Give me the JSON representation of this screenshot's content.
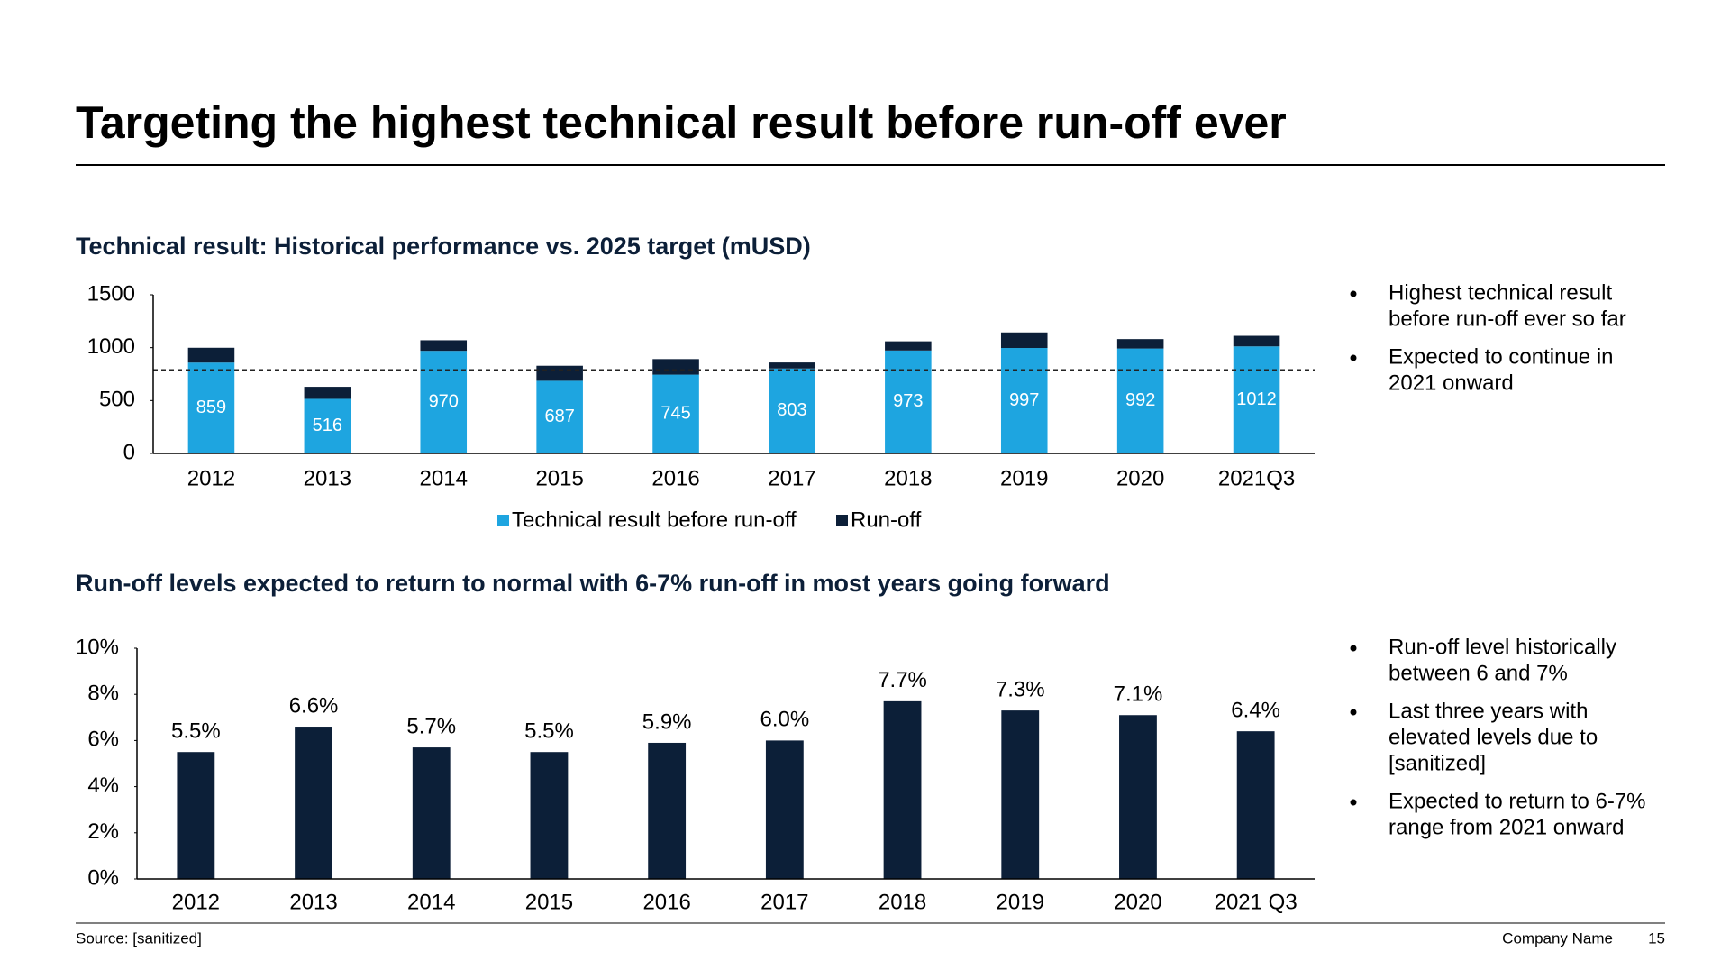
{
  "title": "Targeting the highest technical result before run-off ever",
  "chart_data": [
    {
      "type": "stacked-bar",
      "title": "Technical result: Historical performance vs. 2025 target (mUSD)",
      "categories": [
        "2012",
        "2013",
        "2014",
        "2015",
        "2016",
        "2017",
        "2018",
        "2019",
        "2020",
        "2021Q3"
      ],
      "series": [
        {
          "name": "Technical result before run-off",
          "color": "#1ea5e0",
          "values": [
            859,
            516,
            970,
            687,
            745,
            803,
            973,
            997,
            992,
            1012
          ]
        },
        {
          "name": "Run-off",
          "color": "#0c1f38",
          "values": [
            140,
            114,
            100,
            142,
            147,
            57,
            87,
            147,
            89,
            100
          ]
        }
      ],
      "target_line": 790,
      "ylim": [
        0,
        1500
      ],
      "yticks": [
        0,
        500,
        1000,
        1500
      ],
      "legend": "bottom"
    },
    {
      "type": "bar",
      "title": "Run-off levels expected to return to normal with 6-7% run-off in most years going forward",
      "categories": [
        "2012",
        "2013",
        "2014",
        "2015",
        "2016",
        "2017",
        "2018",
        "2019",
        "2020",
        "2021 Q3"
      ],
      "values": [
        5.5,
        6.6,
        5.7,
        5.5,
        5.9,
        6.0,
        7.7,
        7.3,
        7.1,
        6.4
      ],
      "value_labels": [
        "5.5%",
        "6.6%",
        "5.7%",
        "5.5%",
        "5.9%",
        "6.0%",
        "7.7%",
        "7.3%",
        "7.1%",
        "6.4%"
      ],
      "color": "#0c1f38",
      "ylim": [
        0,
        10
      ],
      "yticks": [
        {
          "value": 0,
          "label": "0%"
        },
        {
          "value": 2,
          "label": "2%"
        },
        {
          "value": 4,
          "label": "4%"
        },
        {
          "value": 6,
          "label": "6%"
        },
        {
          "value": 8,
          "label": "8%"
        },
        {
          "value": 10,
          "label": "10%"
        }
      ]
    }
  ],
  "bullets": [
    [
      [
        "Highest technical result",
        "before run-off ever so far"
      ],
      [
        "Expected to continue in",
        "2021 onward"
      ]
    ],
    [
      [
        "Run-off level historically",
        "between 6 and 7%"
      ],
      [
        "Last three years with",
        "elevated levels due to",
        "[sanitized]"
      ],
      [
        "Expected to return to 6-7%",
        "range from 2021 onward"
      ]
    ]
  ],
  "footer": {
    "source": "Source: [sanitized]",
    "company": "Company Name",
    "page": 15
  }
}
